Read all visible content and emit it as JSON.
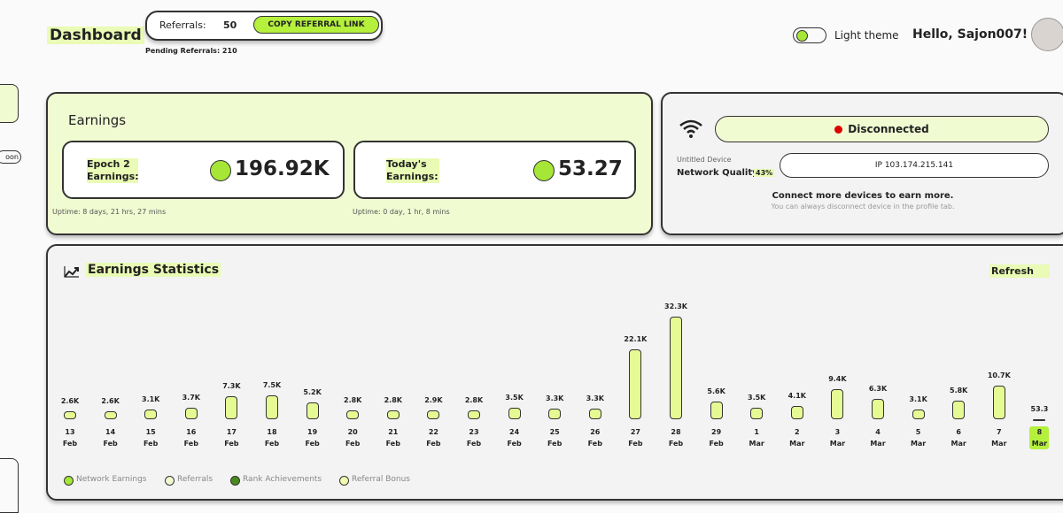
{
  "header": {
    "title": "Dashboard",
    "referrals_label": "Referrals:",
    "referrals_count": "50",
    "copy_button": "COPY REFERRAL LINK",
    "pending": "Pending Referrals: 210",
    "theme_label": "Light theme",
    "greeting": "Hello, Sajon007!"
  },
  "sidebar": {
    "item": "oon"
  },
  "earnings": {
    "title": "Earnings",
    "epoch_label": "Epoch 2 Earnings:",
    "epoch_value": "196.92K",
    "epoch_uptime": "Uptime: 8 days, 21 hrs, 27 mins",
    "today_label": "Today's Earnings:",
    "today_value": "53.27",
    "today_uptime": "Uptime: 0 day, 1 hr, 8 mins"
  },
  "device": {
    "status": "Disconnected",
    "name": "Untitled Device",
    "quality_label": "Network Quality:",
    "quality_value": "43%",
    "ip": "IP 103.174.215.141",
    "hint": "Connect more devices to earn more.",
    "subhint": "You can always disconnect device in the profile tab."
  },
  "statistics": {
    "title": "Earnings Statistics",
    "refresh": "Refresh"
  },
  "chart_data": {
    "type": "bar",
    "color": "#e6fa94",
    "categories": [
      "13 Feb",
      "14 Feb",
      "15 Feb",
      "16 Feb",
      "17 Feb",
      "18 Feb",
      "19 Feb",
      "20 Feb",
      "21 Feb",
      "22 Feb",
      "23 Feb",
      "24 Feb",
      "25 Feb",
      "26 Feb",
      "27 Feb",
      "28 Feb",
      "29 Feb",
      "1 Mar",
      "2 Mar",
      "3 Mar",
      "4 Mar",
      "5 Mar",
      "6 Mar",
      "7 Mar",
      "8 Mar"
    ],
    "values": [
      2600,
      2600,
      3100,
      3700,
      7300,
      7500,
      5200,
      2800,
      2800,
      2900,
      2800,
      3500,
      3300,
      3300,
      22100,
      32300,
      5600,
      3500,
      4100,
      9400,
      6300,
      3100,
      5800,
      10700,
      53.3
    ],
    "value_labels": [
      "2.6K",
      "2.6K",
      "3.1K",
      "3.7K",
      "7.3K",
      "7.5K",
      "5.2K",
      "2.8K",
      "2.8K",
      "2.9K",
      "2.8K",
      "3.5K",
      "3.3K",
      "3.3K",
      "22.1K",
      "32.3K",
      "5.6K",
      "3.5K",
      "4.1K",
      "9.4K",
      "6.3K",
      "3.1K",
      "5.8K",
      "10.7K",
      "53.3"
    ],
    "legend": [
      {
        "name": "Network Earnings",
        "color": "#a6e636"
      },
      {
        "name": "Referrals",
        "color": "#f0fbd2"
      },
      {
        "name": "Rank Achievements",
        "color": "#4a8a1c"
      },
      {
        "name": "Referral Bonus",
        "color": "#f3fbb0"
      }
    ]
  }
}
